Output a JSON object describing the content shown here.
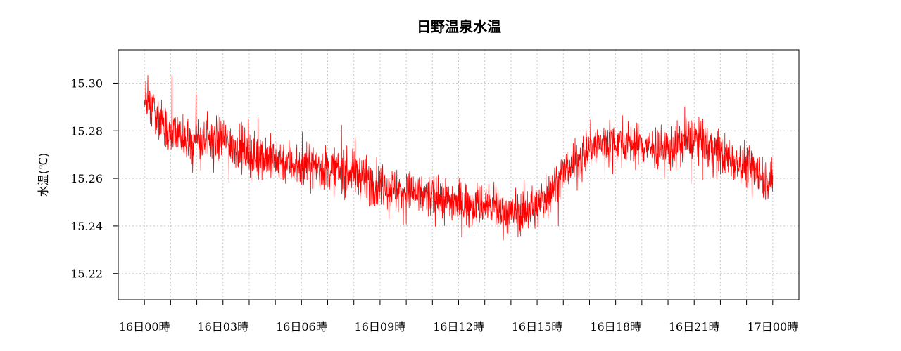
{
  "chart_data": {
    "type": "line",
    "title": "日野温泉水温",
    "ylabel": "水温(℃)",
    "xlabel": "",
    "ylim": [
      15.209,
      15.314
    ],
    "y_ticks": [
      15.22,
      15.24,
      15.26,
      15.28,
      15.3
    ],
    "y_tick_labels": [
      "15.22",
      "15.24",
      "15.26",
      "15.28",
      "15.30"
    ],
    "x_unit": "hours since 16日00時",
    "xlim": [
      -1,
      25
    ],
    "x_ticks": [
      0,
      1,
      2,
      3,
      4,
      5,
      6,
      7,
      8,
      9,
      10,
      11,
      12,
      13,
      14,
      15,
      16,
      17,
      18,
      19,
      20,
      21,
      22,
      23,
      24
    ],
    "x_tick_labels": [
      {
        "x": 0,
        "label": "16日00時"
      },
      {
        "x": 3,
        "label": "16日03時"
      },
      {
        "x": 6,
        "label": "16日06時"
      },
      {
        "x": 9,
        "label": "16日09時"
      },
      {
        "x": 12,
        "label": "16日12時"
      },
      {
        "x": 15,
        "label": "16日15時"
      },
      {
        "x": 18,
        "label": "16日18時"
      },
      {
        "x": 21,
        "label": "16日21時"
      },
      {
        "x": 24,
        "label": "17日00時"
      }
    ],
    "grid": true,
    "series": [
      {
        "color": "#ff0000",
        "x": [
          0,
          1,
          2,
          3,
          4,
          5,
          6,
          7,
          8,
          9,
          10,
          11,
          12,
          13,
          14,
          15,
          16,
          17,
          18,
          19,
          20,
          21,
          22,
          23,
          24
        ],
        "y": [
          15.294,
          15.279,
          15.275,
          15.277,
          15.27,
          15.268,
          15.266,
          15.264,
          15.262,
          15.257,
          15.254,
          15.252,
          15.25,
          15.249,
          15.245,
          15.248,
          15.262,
          15.273,
          15.276,
          15.274,
          15.272,
          15.277,
          15.27,
          15.266,
          15.258
        ]
      }
    ]
  }
}
